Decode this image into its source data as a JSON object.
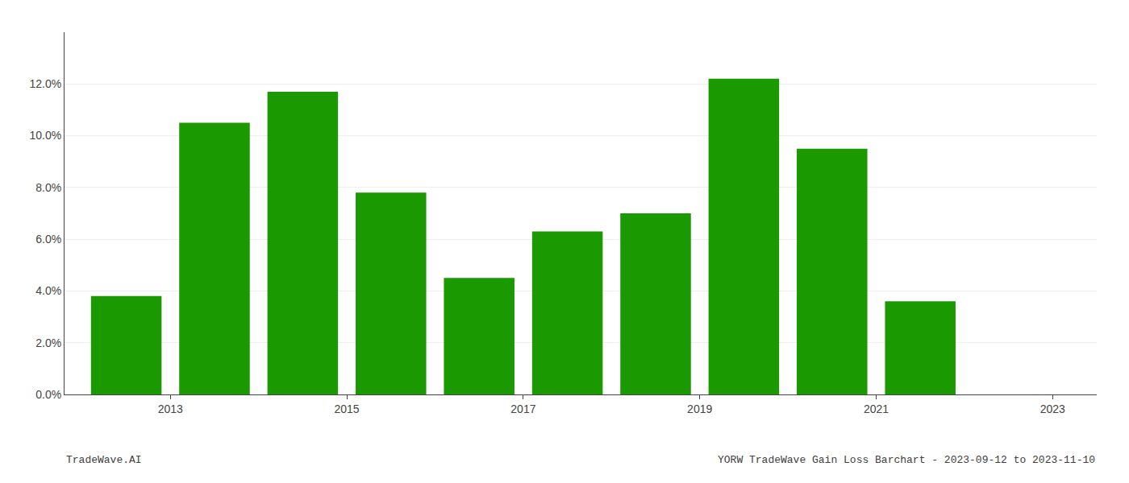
{
  "chart_data": {
    "type": "bar",
    "title": "YORW TradeWave Gain Loss Barchart - 2023-09-12 to 2023-11-10",
    "annotations": [
      "TradeWave.AI"
    ],
    "x": [
      2013,
      2014,
      2015,
      2016,
      2017,
      2018,
      2019,
      2020,
      2021,
      2022
    ],
    "values": [
      0.038,
      0.105,
      0.117,
      0.078,
      0.045,
      0.063,
      0.07,
      0.122,
      0.095,
      0.036
    ],
    "color": "#1a9a00",
    "xlim": [
      2012.3,
      2024.0
    ],
    "xticks": [
      {
        "value": 2013.5,
        "label": "2013"
      },
      {
        "value": 2015.5,
        "label": "2015"
      },
      {
        "value": 2017.5,
        "label": "2017"
      },
      {
        "value": 2019.5,
        "label": "2019"
      },
      {
        "value": 2021.5,
        "label": "2021"
      },
      {
        "value": 2023.5,
        "label": "2023"
      }
    ],
    "ylim": [
      0,
      0.14
    ],
    "yticks": [
      {
        "value": 0.0,
        "label": "0.0%"
      },
      {
        "value": 0.02,
        "label": "2.0%"
      },
      {
        "value": 0.04,
        "label": "4.0%"
      },
      {
        "value": 0.06,
        "label": "6.0%"
      },
      {
        "value": 0.08,
        "label": "8.0%"
      },
      {
        "value": 0.1,
        "label": "10.0%"
      },
      {
        "value": 0.12,
        "label": "12.0%"
      }
    ],
    "grid": true
  }
}
